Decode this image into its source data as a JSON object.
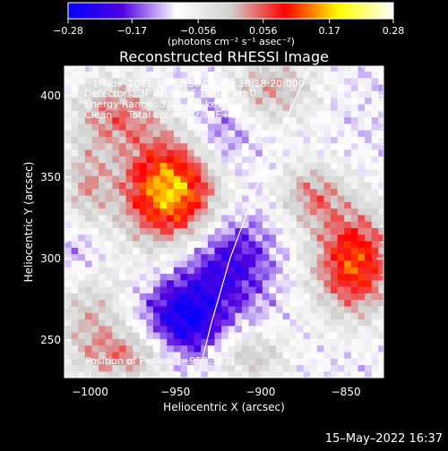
{
  "chart_data": {
    "type": "heatmap",
    "title": "Reconstructed RHESSI Image",
    "xlabel": "Heliocentric X (arcsec)",
    "ylabel": "Heliocentric Y (arcsec)",
    "xlim": [
      -1015,
      -828
    ],
    "ylim": [
      227,
      418
    ],
    "x_ticks": [
      -1000,
      -950,
      -900,
      -850
    ],
    "y_ticks": [
      250,
      300,
      350,
      400
    ],
    "x_tick_labels": [
      "−1000",
      "−950",
      "−900",
      "−850"
    ],
    "y_tick_labels": [
      "250",
      "300",
      "350",
      "400"
    ],
    "colorbar": {
      "min": -0.28,
      "max": 0.28,
      "ticks": [
        -0.28,
        -0.17,
        -0.056,
        0.056,
        0.17,
        0.28
      ],
      "tick_labels": [
        "−0.28",
        "−0.17",
        "−0.056",
        "0.056",
        "0.17",
        "0.28"
      ],
      "units_text": "(photons cm⁻² s⁻¹ asec⁻²)",
      "colors": [
        "#0000ff",
        "#5000e0",
        "#ffffff",
        "#d0d0d0",
        "#ff0000",
        "#ffff00",
        "#ffffff"
      ]
    },
    "annotations": [
      "1–Nov–2011 18:12:56.000 to 18:18:20.000",
      "Detectors: 3F 4F 5F 6F 7F 8F, Att 0",
      "Energy Range: 3.0 – 6.0 keV",
      "Clean     Total counts: 2.79E+05"
    ],
    "peak_label": "Position of Peak = [−953,337]",
    "peak": [
      -953,
      337
    ],
    "sources": [
      {
        "x": -952,
        "y": 342,
        "amp": 0.28,
        "sx": 22,
        "sy": 24
      },
      {
        "x": -985,
        "y": 390,
        "amp": 0.13,
        "sx": 18,
        "sy": 16
      },
      {
        "x": -1003,
        "y": 345,
        "amp": 0.1,
        "sx": 10,
        "sy": 20
      },
      {
        "x": -845,
        "y": 298,
        "amp": 0.22,
        "sx": 18,
        "sy": 24
      },
      {
        "x": -870,
        "y": 340,
        "amp": 0.12,
        "sx": 14,
        "sy": 14
      },
      {
        "x": -895,
        "y": 405,
        "amp": 0.12,
        "sx": 20,
        "sy": 16
      },
      {
        "x": -1000,
        "y": 265,
        "amp": 0.1,
        "sx": 16,
        "sy": 22
      },
      {
        "x": -975,
        "y": 240,
        "amp": 0.12,
        "sx": 20,
        "sy": 12
      },
      {
        "x": -905,
        "y": 240,
        "amp": 0.1,
        "sx": 16,
        "sy": 12
      },
      {
        "x": -920,
        "y": 300,
        "amp": -0.12,
        "sx": 18,
        "sy": 22
      },
      {
        "x": -945,
        "y": 262,
        "amp": -0.16,
        "sx": 16,
        "sy": 18
      },
      {
        "x": -925,
        "y": 375,
        "amp": -0.08,
        "sx": 14,
        "sy": 22
      },
      {
        "x": -1005,
        "y": 305,
        "amp": -0.05,
        "sx": 10,
        "sy": 14
      }
    ],
    "limb_curve": [
      [
        -937,
        227
      ],
      [
        -929,
        260
      ],
      [
        -918,
        300
      ],
      [
        -902,
        345
      ],
      [
        -883,
        390
      ],
      [
        -871,
        418
      ]
    ],
    "timestamp": "15–May–2022 16:37"
  }
}
